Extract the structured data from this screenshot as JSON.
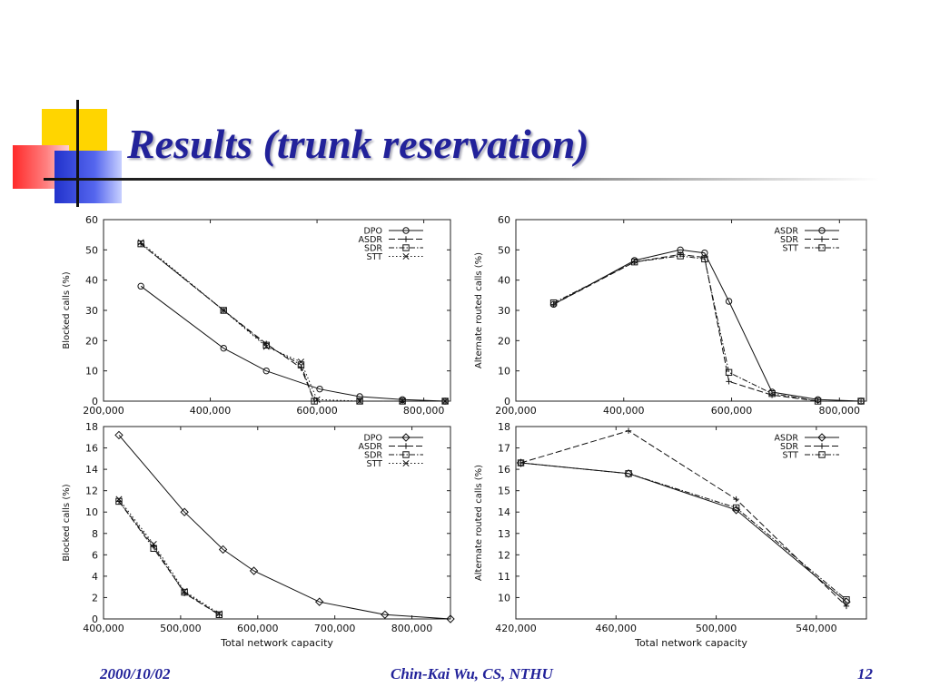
{
  "slide": {
    "title": "Results (trunk reservation)",
    "footer_date": "2000/10/02",
    "footer_author": "Chin-Kai Wu, CS, NTHU",
    "footer_page": "12"
  },
  "chart_data": [
    {
      "type": "line",
      "ylabel": "Blocked calls (%)",
      "xlabel": "",
      "xlim": [
        200000,
        850000
      ],
      "ylim": [
        0,
        60
      ],
      "xticks": [
        200000,
        400000,
        600000,
        800000
      ],
      "xtick_labels": [
        "200,000",
        "400,000",
        "600,000",
        "800,000"
      ],
      "yticks": [
        0,
        10,
        20,
        30,
        40,
        50,
        60
      ],
      "legend": "top-right",
      "series": [
        {
          "name": "DPO",
          "marker": "circle",
          "dash": "solid",
          "x": [
            270000,
            425000,
            505000,
            605000,
            680000,
            760000,
            840000
          ],
          "y": [
            38,
            17.5,
            10,
            4,
            1.5,
            0.5,
            0
          ]
        },
        {
          "name": "ASDR",
          "marker": "plus",
          "dash": "longdash",
          "x": [
            270000,
            425000,
            505000,
            570000,
            595000,
            680000,
            760000,
            840000
          ],
          "y": [
            52,
            30,
            19,
            11,
            0,
            0,
            0,
            0
          ]
        },
        {
          "name": "SDR",
          "marker": "square",
          "dash": "dashdot",
          "x": [
            270000,
            425000,
            505000,
            570000,
            595000,
            680000,
            760000,
            840000
          ],
          "y": [
            52,
            30,
            18.5,
            12,
            0,
            0,
            0,
            0
          ]
        },
        {
          "name": "STT",
          "marker": "cross",
          "dash": "dotted",
          "x": [
            270000,
            425000,
            505000,
            570000,
            600000,
            680000,
            760000,
            840000
          ],
          "y": [
            52.5,
            30,
            18,
            13,
            0.5,
            0,
            0,
            0
          ]
        }
      ]
    },
    {
      "type": "line",
      "ylabel": "Alternate routed calls (%)",
      "xlabel": "",
      "xlim": [
        200000,
        850000
      ],
      "ylim": [
        0,
        60
      ],
      "xticks": [
        200000,
        400000,
        600000,
        800000
      ],
      "xtick_labels": [
        "200,000",
        "400,000",
        "600,000",
        "800,000"
      ],
      "yticks": [
        0,
        10,
        20,
        30,
        40,
        50,
        60
      ],
      "legend": "top-right",
      "series": [
        {
          "name": "ASDR",
          "marker": "circle",
          "dash": "solid",
          "x": [
            270000,
            420000,
            505000,
            550000,
            595000,
            675000,
            760000,
            840000
          ],
          "y": [
            32,
            46.5,
            50,
            49,
            33,
            3,
            0.5,
            0
          ]
        },
        {
          "name": "SDR",
          "marker": "plus",
          "dash": "longdash",
          "x": [
            270000,
            420000,
            505000,
            550000,
            595000,
            675000,
            760000,
            840000
          ],
          "y": [
            32,
            46,
            48.5,
            47.5,
            6.5,
            2,
            0,
            0
          ]
        },
        {
          "name": "STT",
          "marker": "square",
          "dash": "dashdot",
          "x": [
            270000,
            420000,
            505000,
            550000,
            595000,
            675000,
            760000,
            840000
          ],
          "y": [
            32.5,
            46,
            48,
            47,
            9.5,
            2.5,
            0,
            0
          ]
        }
      ]
    },
    {
      "type": "line",
      "ylabel": "Blocked calls (%)",
      "xlabel": "Total network capacity",
      "xlim": [
        400000,
        850000
      ],
      "ylim": [
        0,
        18
      ],
      "xticks": [
        400000,
        500000,
        600000,
        700000,
        800000
      ],
      "xtick_labels": [
        "400,000",
        "500,000",
        "600,000",
        "700,000",
        "800,000"
      ],
      "yticks": [
        0,
        2,
        4,
        6,
        8,
        10,
        12,
        14,
        16,
        18
      ],
      "legend": "top-right",
      "series": [
        {
          "name": "DPO",
          "marker": "diamond",
          "dash": "solid",
          "x": [
            420000,
            505000,
            555000,
            595000,
            680000,
            765000,
            850000
          ],
          "y": [
            17.2,
            10,
            6.5,
            4.5,
            1.6,
            0.4,
            0
          ]
        },
        {
          "name": "ASDR",
          "marker": "plus",
          "dash": "longdash",
          "x": [
            420000,
            465000,
            505000,
            550000
          ],
          "y": [
            11,
            6.8,
            2.4,
            0.4
          ]
        },
        {
          "name": "SDR",
          "marker": "square",
          "dash": "dashdot",
          "x": [
            420000,
            465000,
            505000,
            550000
          ],
          "y": [
            11,
            6.6,
            2.5,
            0.4
          ]
        },
        {
          "name": "STT",
          "marker": "cross",
          "dash": "dotted",
          "x": [
            420000,
            465000,
            505000,
            550000
          ],
          "y": [
            11.2,
            7,
            2.6,
            0.5
          ]
        }
      ]
    },
    {
      "type": "line",
      "ylabel": "Alternate routed calls (%)",
      "xlabel": "Total network capacity",
      "xlim": [
        420000,
        560000
      ],
      "ylim": [
        9,
        18
      ],
      "xticks": [
        420000,
        460000,
        500000,
        540000
      ],
      "xtick_labels": [
        "420,000",
        "460,000",
        "500,000",
        "540,000"
      ],
      "yticks": [
        10,
        11,
        12,
        13,
        14,
        15,
        16,
        17,
        18
      ],
      "legend": "top-right",
      "series": [
        {
          "name": "ASDR",
          "marker": "diamond",
          "dash": "solid",
          "x": [
            422000,
            465000,
            508000,
            552000
          ],
          "y": [
            16.3,
            15.8,
            14.1,
            9.8
          ]
        },
        {
          "name": "SDR",
          "marker": "plus",
          "dash": "longdash",
          "x": [
            422000,
            465000,
            508000,
            552000
          ],
          "y": [
            16.3,
            17.8,
            14.6,
            9.6
          ]
        },
        {
          "name": "STT",
          "marker": "square",
          "dash": "dashdot",
          "x": [
            422000,
            465000,
            508000,
            552000
          ],
          "y": [
            16.3,
            15.8,
            14.2,
            9.9
          ]
        }
      ]
    }
  ]
}
